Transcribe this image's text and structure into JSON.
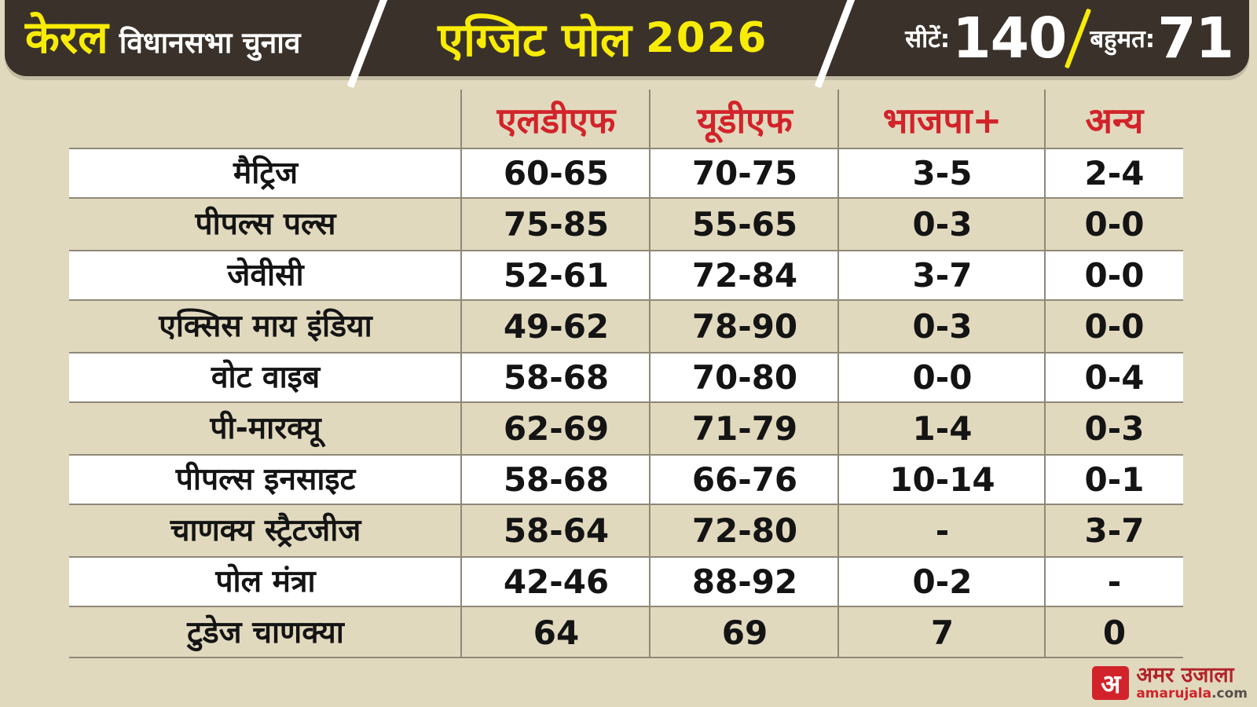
{
  "header": {
    "region": "केरल",
    "subtitle": "विधानसभा चुनाव",
    "poll_title": "एग्जिट पोल",
    "year": "2026",
    "seats_label": "सीटें:",
    "seats_value": "140",
    "majority_label": "बहुमत:",
    "majority_value": "71"
  },
  "chart_data": {
    "type": "table",
    "title": "केरल विधानसभा चुनाव एग्जिट पोल 2026",
    "total_seats": 140,
    "majority_mark": 71,
    "columns": [
      "एलडीएफ",
      "यूडीएफ",
      "भाजपा+",
      "अन्य"
    ],
    "rows": [
      {
        "pollster": "मैट्रिज",
        "values": [
          "60-65",
          "70-75",
          "3-5",
          "2-4"
        ]
      },
      {
        "pollster": "पीपल्स पल्स",
        "values": [
          "75-85",
          "55-65",
          "0-3",
          "0-0"
        ]
      },
      {
        "pollster": "जेवीसी",
        "values": [
          "52-61",
          "72-84",
          "3-7",
          "0-0"
        ]
      },
      {
        "pollster": "एक्सिस माय इंडिया",
        "values": [
          "49-62",
          "78-90",
          "0-3",
          "0-0"
        ]
      },
      {
        "pollster": "वोट वाइब",
        "values": [
          "58-68",
          "70-80",
          "0-0",
          "0-4"
        ]
      },
      {
        "pollster": "पी-मारक्यू",
        "values": [
          "62-69",
          "71-79",
          "1-4",
          "0-3"
        ]
      },
      {
        "pollster": "पीपल्स इनसाइट",
        "values": [
          "58-68",
          "66-76",
          "10-14",
          "0-1"
        ]
      },
      {
        "pollster": "चाणक्य स्ट्रैटजीज",
        "values": [
          "58-64",
          "72-80",
          "-",
          "3-7"
        ]
      },
      {
        "pollster": "पोल मंत्रा",
        "values": [
          "42-46",
          "88-92",
          "0-2",
          "-"
        ]
      },
      {
        "pollster": "टुडेज चाणक्या",
        "values": [
          "64",
          "69",
          "7",
          "0"
        ]
      }
    ]
  },
  "footer": {
    "logo_mark": "अ",
    "logo_name": "अमर उजाला",
    "logo_domain": "amarujala",
    "logo_tld": ".com"
  },
  "colors": {
    "bar": "#3a322a",
    "yellow": "#f8ec06",
    "red": "#d2232a",
    "background": "#e1d9be",
    "grid_line": "#8f8878",
    "row_white": "#ffffff"
  }
}
